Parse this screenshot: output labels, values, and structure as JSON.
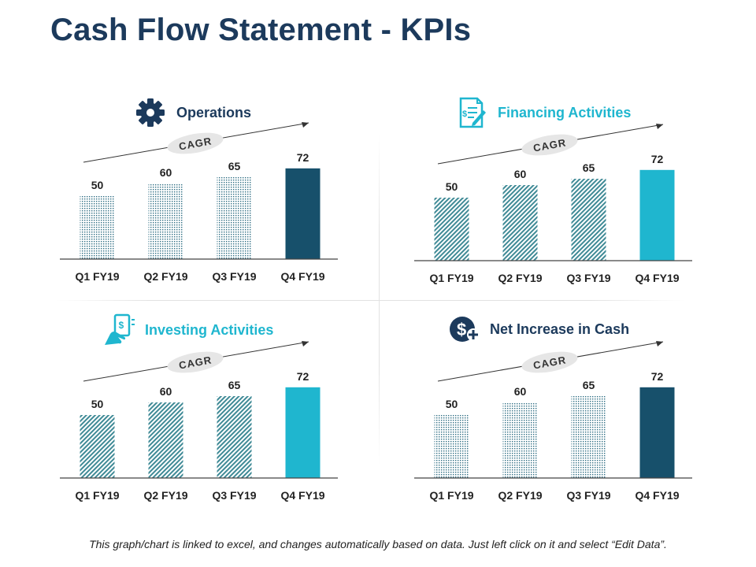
{
  "page": {
    "title": "Cash Flow Statement - KPIs"
  },
  "footer": {
    "note": "This graph/chart is linked to excel, and changes automatically based on data. Just left click on it and select “Edit Data”."
  },
  "colors": {
    "title": "#1c3a5c",
    "teal": "#1fb6cf",
    "navy": "#17506b",
    "hatch_dark": "#3f7f8e",
    "axis": "#444444"
  },
  "chart_data": [
    {
      "type": "bar",
      "title": "Operations",
      "icon": "gear-icon",
      "title_color": "#1c3a5c",
      "annotation": "CAGR",
      "categories": [
        "Q1 FY19",
        "Q2 FY19",
        "Q3 FY19",
        "Q4 FY19"
      ],
      "values": [
        50,
        60,
        65,
        72
      ],
      "bar_styles": [
        "dots",
        "dots",
        "dots",
        "solid"
      ],
      "highlight_color": "#17506b",
      "ylim": [
        0,
        80
      ],
      "xlabel": "",
      "ylabel": ""
    },
    {
      "type": "bar",
      "title": "Financing Activities",
      "icon": "document-edit-icon",
      "title_color": "#1fb6cf",
      "annotation": "CAGR",
      "categories": [
        "Q1 FY19",
        "Q2 FY19",
        "Q3 FY19",
        "Q4 FY19"
      ],
      "values": [
        50,
        60,
        65,
        72
      ],
      "bar_styles": [
        "hatch",
        "hatch",
        "hatch",
        "solid"
      ],
      "highlight_color": "#1fb6cf",
      "ylim": [
        0,
        80
      ],
      "xlabel": "",
      "ylabel": ""
    },
    {
      "type": "bar",
      "title": "Investing Activities",
      "icon": "money-hand-icon",
      "title_color": "#1fb6cf",
      "annotation": "CAGR",
      "categories": [
        "Q1 FY19",
        "Q2 FY19",
        "Q3 FY19",
        "Q4 FY19"
      ],
      "values": [
        50,
        60,
        65,
        72
      ],
      "bar_styles": [
        "hatch",
        "hatch",
        "hatch",
        "solid"
      ],
      "highlight_color": "#1fb6cf",
      "ylim": [
        0,
        80
      ],
      "xlabel": "",
      "ylabel": ""
    },
    {
      "type": "bar",
      "title": "Net Increase in Cash",
      "icon": "dollar-plus-icon",
      "title_color": "#1c3a5c",
      "annotation": "CAGR",
      "categories": [
        "Q1 FY19",
        "Q2 FY19",
        "Q3 FY19",
        "Q4 FY19"
      ],
      "values": [
        50,
        60,
        65,
        72
      ],
      "bar_styles": [
        "dots",
        "dots",
        "dots",
        "solid"
      ],
      "highlight_color": "#17506b",
      "ylim": [
        0,
        80
      ],
      "xlabel": "",
      "ylabel": ""
    }
  ]
}
